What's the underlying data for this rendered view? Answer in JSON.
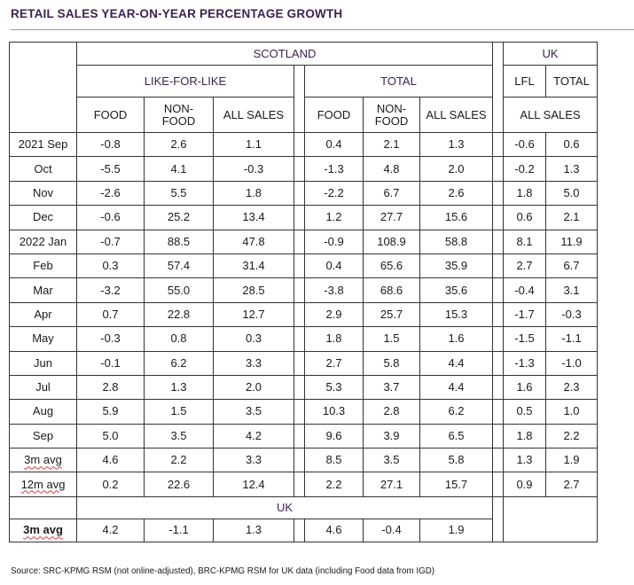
{
  "title": "RETAIL SALES YEAR-ON-YEAR PERCENTAGE GROWTH",
  "headers": {
    "scotland": "SCOTLAND",
    "uk": "UK",
    "like_for_like": "LIKE-FOR-LIKE",
    "total": "TOTAL",
    "lfl": "LFL",
    "uk_total": "TOTAL",
    "food": "FOOD",
    "non_food_1": "NON-",
    "non_food_2": "FOOD",
    "all_sales": "ALL SALES",
    "uk_all_sales": "ALL SALES"
  },
  "rows": [
    {
      "label": "2021 Sep",
      "v": [
        "-0.8",
        "2.6",
        "1.1",
        "0.4",
        "2.1",
        "1.3",
        "-0.6",
        "0.6"
      ]
    },
    {
      "label": "Oct",
      "v": [
        "-5.5",
        "4.1",
        "-0.3",
        "-1.3",
        "4.8",
        "2.0",
        "-0.2",
        "1.3"
      ]
    },
    {
      "label": "Nov",
      "v": [
        "-2.6",
        "5.5",
        "1.8",
        "-2.2",
        "6.7",
        "2.6",
        "1.8",
        "5.0"
      ]
    },
    {
      "label": "Dec",
      "v": [
        "-0.6",
        "25.2",
        "13.4",
        "1.2",
        "27.7",
        "15.6",
        "0.6",
        "2.1"
      ]
    },
    {
      "label": "2022 Jan",
      "v": [
        "-0.7",
        "88.5",
        "47.8",
        "-0.9",
        "108.9",
        "58.8",
        "8.1",
        "11.9"
      ]
    },
    {
      "label": "Feb",
      "v": [
        "0.3",
        "57.4",
        "31.4",
        "0.4",
        "65.6",
        "35.9",
        "2.7",
        "6.7"
      ]
    },
    {
      "label": "Mar",
      "v": [
        "-3.2",
        "55.0",
        "28.5",
        "-3.8",
        "68.6",
        "35.6",
        "-0.4",
        "3.1"
      ]
    },
    {
      "label": "Apr",
      "v": [
        "0.7",
        "22.8",
        "12.7",
        "2.9",
        "25.7",
        "15.3",
        "-1.7",
        "-0.3"
      ]
    },
    {
      "label": "May",
      "v": [
        "-0.3",
        "0.8",
        "0.3",
        "1.8",
        "1.5",
        "1.6",
        "-1.5",
        "-1.1"
      ]
    },
    {
      "label": "Jun",
      "v": [
        "-0.1",
        "6.2",
        "3.3",
        "2.7",
        "5.8",
        "4.4",
        "-1.3",
        "-1.0"
      ]
    },
    {
      "label": "Jul",
      "v": [
        "2.8",
        "1.3",
        "2.0",
        "5.3",
        "3.7",
        "4.4",
        "1.6",
        "2.3"
      ]
    },
    {
      "label": "Aug",
      "v": [
        "5.9",
        "1.5",
        "3.5",
        "10.3",
        "2.8",
        "6.2",
        "0.5",
        "1.0"
      ]
    },
    {
      "label": "Sep",
      "v": [
        "5.0",
        "3.5",
        "4.2",
        "9.6",
        "3.9",
        "6.5",
        "1.8",
        "2.2"
      ]
    },
    {
      "label": "3m avg",
      "v": [
        "4.6",
        "2.2",
        "3.3",
        "8.5",
        "3.5",
        "5.8",
        "1.3",
        "1.9"
      ]
    },
    {
      "label": "12m avg",
      "v": [
        "0.2",
        "22.6",
        "12.4",
        "2.2",
        "27.1",
        "15.7",
        "0.9",
        "2.7"
      ]
    }
  ],
  "uk_section": {
    "header": "UK",
    "label": "3m avg",
    "v": [
      "4.2",
      "-1.1",
      "1.3",
      "4.6",
      "-0.4",
      "1.9"
    ]
  },
  "source": "Source: SRC-KPMG RSM (not online-adjusted), BRC-KPMG RSM for UK data (including Food data from IGD)",
  "colors": {
    "title": "#3b2352",
    "rule": "#9a9a9a",
    "grid": "#333333",
    "spellcheck": "#d63b3b"
  }
}
